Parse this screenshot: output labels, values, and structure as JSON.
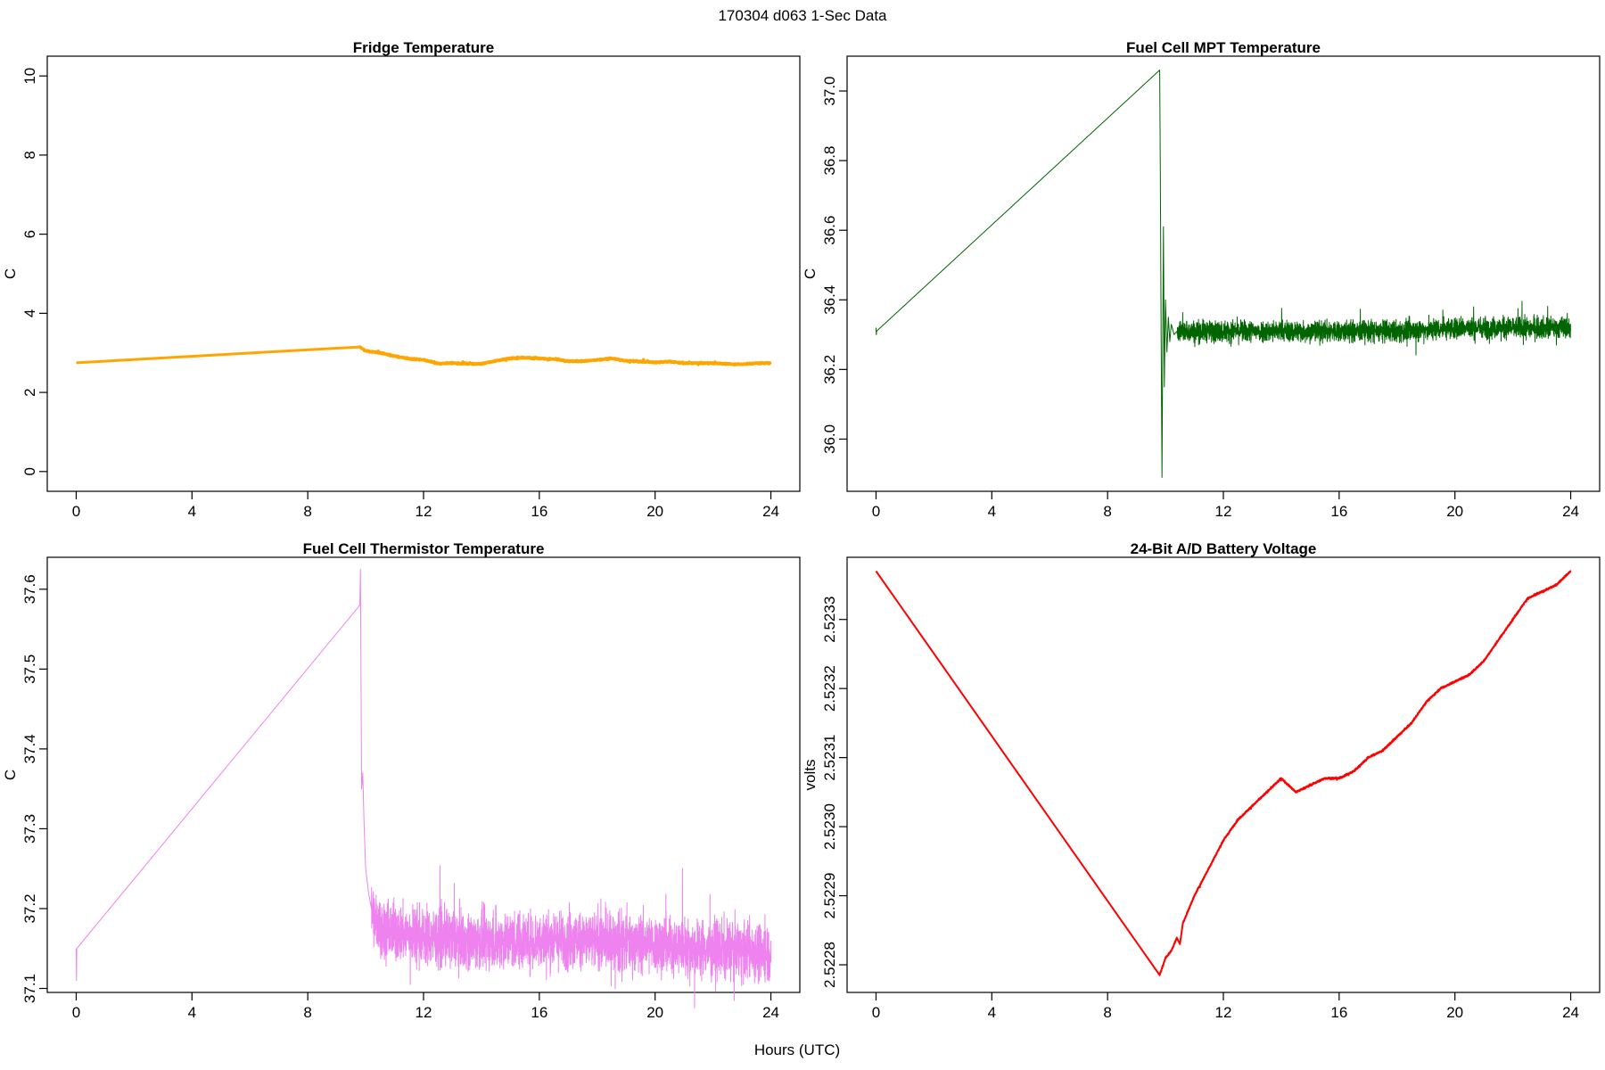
{
  "figure": {
    "suptitle": "170304   d063   1-Sec Data",
    "xlabel": "Hours (UTC)"
  },
  "chart_data": [
    {
      "type": "line",
      "title": "Fridge Temperature",
      "ylabel": "C",
      "xlim": [
        -1,
        25
      ],
      "ylim": [
        -0.5,
        10.5
      ],
      "xticks": [
        0,
        4,
        8,
        12,
        16,
        20,
        24
      ],
      "xtick_labels": [
        "0",
        "4",
        "8",
        "12",
        "16",
        "20",
        "24"
      ],
      "yticks": [
        0,
        2,
        4,
        6,
        8,
        10
      ],
      "ytick_labels": [
        "0",
        "2",
        "4",
        "6",
        "8",
        "10"
      ],
      "color": "#FFA500",
      "noise": 0.02,
      "line_width": 3,
      "x": [
        0,
        9.8,
        10,
        10.5,
        11,
        11.5,
        12,
        12.5,
        13,
        13.5,
        14,
        14.5,
        15,
        15.5,
        16,
        16.5,
        17,
        17.5,
        18,
        18.5,
        19,
        19.5,
        20,
        20.5,
        21,
        21.5,
        22,
        22.5,
        23,
        23.5,
        24
      ],
      "y": [
        2.75,
        3.15,
        3.05,
        3.0,
        2.92,
        2.85,
        2.82,
        2.73,
        2.74,
        2.73,
        2.72,
        2.8,
        2.86,
        2.88,
        2.86,
        2.84,
        2.79,
        2.79,
        2.82,
        2.86,
        2.8,
        2.78,
        2.76,
        2.78,
        2.74,
        2.74,
        2.74,
        2.72,
        2.71,
        2.74,
        2.74
      ]
    },
    {
      "type": "line",
      "title": "Fuel Cell MPT Temperature",
      "ylabel": "C",
      "xlim": [
        -1,
        25
      ],
      "ylim": [
        35.85,
        37.1
      ],
      "xticks": [
        0,
        4,
        8,
        12,
        16,
        20,
        24
      ],
      "xtick_labels": [
        "0",
        "4",
        "8",
        "12",
        "16",
        "20",
        "24"
      ],
      "yticks": [
        36.0,
        36.2,
        36.4,
        36.6,
        36.8,
        37.0
      ],
      "ytick_labels": [
        "36.0",
        "36.2",
        "36.4",
        "36.6",
        "36.8",
        "37.0"
      ],
      "color": "#006400",
      "noise": 0.03,
      "line_width": 1,
      "x": [
        0,
        0.01,
        0.02,
        9.8,
        9.82,
        9.85,
        9.88,
        9.9,
        9.93,
        9.96,
        10.0,
        10.05,
        10.1,
        10.15,
        10.2,
        10.3,
        10.4,
        10.6,
        11,
        12,
        14,
        16,
        18,
        20,
        22,
        24
      ],
      "y": [
        36.32,
        36.3,
        36.31,
        37.06,
        36.8,
        36.3,
        35.89,
        36.2,
        36.61,
        36.15,
        36.4,
        36.25,
        36.35,
        36.28,
        36.33,
        36.3,
        36.31,
        36.31,
        36.31,
        36.31,
        36.31,
        36.31,
        36.31,
        36.32,
        36.32,
        36.32
      ]
    },
    {
      "type": "line",
      "title": "Fuel Cell Thermistor Temperature",
      "ylabel": "C",
      "xlim": [
        -1,
        25
      ],
      "ylim": [
        37.095,
        37.64
      ],
      "xticks": [
        0,
        4,
        8,
        12,
        16,
        20,
        24
      ],
      "xtick_labels": [
        "0",
        "4",
        "8",
        "12",
        "16",
        "20",
        "24"
      ],
      "yticks": [
        37.1,
        37.2,
        37.3,
        37.4,
        37.5,
        37.6
      ],
      "ytick_labels": [
        "37.1",
        "37.2",
        "37.3",
        "37.4",
        "37.5",
        "37.6"
      ],
      "color": "#EE82EE",
      "noise": 0.035,
      "line_width": 1,
      "x": [
        0,
        0.01,
        0.02,
        9.8,
        9.82,
        9.86,
        9.9,
        9.95,
        10.0,
        10.1,
        10.2,
        10.4,
        10.7,
        11,
        12,
        14,
        16,
        18,
        20,
        22,
        24
      ],
      "y": [
        37.15,
        37.11,
        37.15,
        37.58,
        37.625,
        37.35,
        37.37,
        37.3,
        37.25,
        37.22,
        37.2,
        37.18,
        37.175,
        37.17,
        37.165,
        37.16,
        37.16,
        37.16,
        37.155,
        37.15,
        37.145
      ]
    },
    {
      "type": "line",
      "title": "24-Bit A/D Battery Voltage",
      "ylabel": "volts",
      "xlim": [
        -1,
        25
      ],
      "ylim": [
        2.52276,
        2.52339
      ],
      "xticks": [
        0,
        4,
        8,
        12,
        16,
        20,
        24
      ],
      "xtick_labels": [
        "0",
        "4",
        "8",
        "12",
        "16",
        "20",
        "24"
      ],
      "yticks": [
        2.5228,
        2.5229,
        2.523,
        2.5231,
        2.5232,
        2.5233
      ],
      "ytick_labels": [
        "2.5228",
        "2.5229",
        "2.5230",
        "2.5231",
        "2.5232",
        "2.5233"
      ],
      "color": "#FF0000",
      "noise": 1.2e-06,
      "line_width": 2,
      "x": [
        0,
        9.8,
        10,
        10.2,
        10.4,
        10.5,
        10.6,
        10.8,
        11,
        11.5,
        12,
        12.5,
        13,
        13.5,
        14,
        14.5,
        15,
        15.5,
        16,
        16.5,
        17,
        17.5,
        18,
        18.5,
        19,
        19.5,
        20,
        20.5,
        21,
        21.5,
        22,
        22.5,
        23,
        23.5,
        24
      ],
      "y": [
        2.52337,
        2.522785,
        2.52281,
        2.52282,
        2.52284,
        2.52283,
        2.52286,
        2.52288,
        2.5229,
        2.52294,
        2.52298,
        2.52301,
        2.52303,
        2.52305,
        2.52307,
        2.52305,
        2.52306,
        2.52307,
        2.52307,
        2.52308,
        2.5231,
        2.52311,
        2.52313,
        2.52315,
        2.52318,
        2.5232,
        2.52321,
        2.52322,
        2.52324,
        2.52327,
        2.5233,
        2.52333,
        2.52334,
        2.52335,
        2.52337
      ]
    }
  ]
}
